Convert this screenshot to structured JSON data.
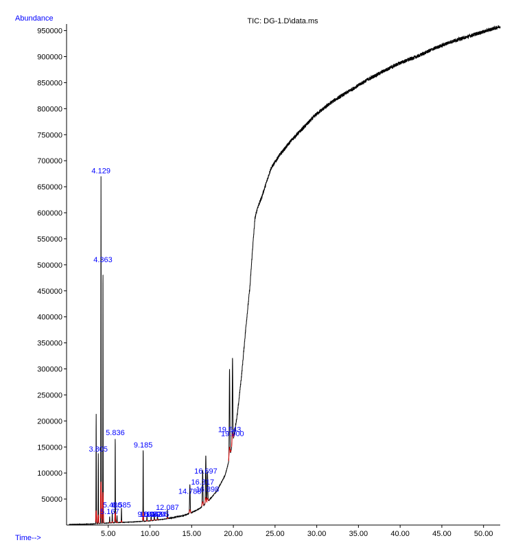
{
  "chart_data": {
    "type": "line",
    "title": "TIC: DG-1.D\\data.ms",
    "ylabel": "Abundance",
    "xlabel": "Time-->",
    "xlim": [
      0,
      52
    ],
    "ylim": [
      0,
      960000
    ],
    "grid": false,
    "x_ticks": [
      "5.00",
      "10.00",
      "15.00",
      "20.00",
      "25.00",
      "30.00",
      "35.00",
      "40.00",
      "45.00",
      "50.00"
    ],
    "x_tick_values": [
      5,
      10,
      15,
      20,
      25,
      30,
      35,
      40,
      45,
      50
    ],
    "y_ticks": [
      "50000",
      "100000",
      "150000",
      "200000",
      "250000",
      "300000",
      "350000",
      "400000",
      "450000",
      "500000",
      "550000",
      "600000",
      "650000",
      "700000",
      "750000",
      "800000",
      "850000",
      "900000",
      "950000"
    ],
    "y_tick_values": [
      50000,
      100000,
      150000,
      200000,
      250000,
      300000,
      350000,
      400000,
      450000,
      500000,
      550000,
      600000,
      650000,
      700000,
      750000,
      800000,
      850000,
      900000,
      950000
    ],
    "series": [
      {
        "color": "#000000",
        "baseline": [
          [
            0,
            1000
          ],
          [
            3.0,
            2000
          ],
          [
            5,
            4000
          ],
          [
            8,
            6000
          ],
          [
            10,
            8000
          ],
          [
            12,
            12000
          ],
          [
            14,
            18000
          ],
          [
            15,
            24000
          ],
          [
            16,
            32000
          ],
          [
            17,
            46000
          ],
          [
            18,
            65000
          ],
          [
            19,
            95000
          ],
          [
            19.5,
            125000
          ],
          [
            20,
            165000
          ],
          [
            20.5,
            215000
          ],
          [
            21,
            290000
          ],
          [
            21.5,
            380000
          ],
          [
            22,
            460000
          ],
          [
            22.3,
            530000
          ],
          [
            22.6,
            590000
          ],
          [
            22.9,
            610000
          ],
          [
            23.3,
            625000
          ],
          [
            23.8,
            650000
          ],
          [
            24.5,
            685000
          ],
          [
            25.5,
            710000
          ],
          [
            27,
            740000
          ],
          [
            28.5,
            765000
          ],
          [
            30,
            790000
          ],
          [
            32,
            815000
          ],
          [
            34,
            835000
          ],
          [
            36,
            855000
          ],
          [
            38,
            872000
          ],
          [
            40,
            888000
          ],
          [
            42,
            900000
          ],
          [
            44,
            915000
          ],
          [
            46,
            928000
          ],
          [
            48,
            938000
          ],
          [
            50,
            948000
          ],
          [
            52,
            958000
          ]
        ],
        "peaks": [
          {
            "rt": 3.55,
            "height": 212000
          },
          {
            "rt": 3.805,
            "height": 135000
          },
          {
            "rt": 4.129,
            "height": 668000
          },
          {
            "rt": 4.363,
            "height": 497000
          },
          {
            "rt": 5.167,
            "height": 12000
          },
          {
            "rt": 5.48,
            "height": 20000
          },
          {
            "rt": 5.836,
            "height": 165000
          },
          {
            "rt": 6.05,
            "height": 14000
          },
          {
            "rt": 6.585,
            "height": 28000
          },
          {
            "rt": 9.185,
            "height": 142000
          },
          {
            "rt": 9.64,
            "height": 12000
          },
          {
            "rt": 10.14,
            "height": 14000
          },
          {
            "rt": 10.52,
            "height": 13000
          },
          {
            "rt": 10.9,
            "height": 12000
          },
          {
            "rt": 12.087,
            "height": 18000
          },
          {
            "rt": 14.788,
            "height": 55000
          },
          {
            "rt": 16.317,
            "height": 70000
          },
          {
            "rt": 16.697,
            "height": 92000
          },
          {
            "rt": 16.898,
            "height": 58000
          },
          {
            "rt": 19.543,
            "height": 172000
          },
          {
            "rt": 19.9,
            "height": 165000
          }
        ]
      }
    ],
    "annotations": [
      {
        "text": "4.129",
        "rt": 4.129,
        "abundance": 672000
      },
      {
        "text": "4.363",
        "rt": 4.363,
        "abundance": 501000
      },
      {
        "text": "3.805",
        "rt": 3.805,
        "abundance": 137000
      },
      {
        "text": "5.836",
        "rt": 5.836,
        "abundance": 169000
      },
      {
        "text": "9.185",
        "rt": 9.185,
        "abundance": 145000
      },
      {
        "text": "5.480",
        "rt": 5.48,
        "abundance": 30000
      },
      {
        "text": "5.167",
        "rt": 5.167,
        "abundance": 17000
      },
      {
        "text": "6.585",
        "rt": 6.585,
        "abundance": 30000
      },
      {
        "text": "9.648",
        "rt": 9.648,
        "abundance": 12000
      },
      {
        "text": "10.143",
        "rt": 10.143,
        "abundance": 12000
      },
      {
        "text": "10.524",
        "rt": 10.524,
        "abundance": 12000
      },
      {
        "text": "10.905",
        "rt": 10.905,
        "abundance": 12000
      },
      {
        "text": "12.087",
        "rt": 12.087,
        "abundance": 25000
      },
      {
        "text": "14.788",
        "rt": 14.788,
        "abundance": 56000
      },
      {
        "text": "16.317",
        "rt": 16.317,
        "abundance": 74000
      },
      {
        "text": "16.697",
        "rt": 16.697,
        "abundance": 95000
      },
      {
        "text": "16.898",
        "rt": 16.898,
        "abundance": 60000
      },
      {
        "text": "19.543",
        "rt": 19.543,
        "abundance": 175000
      },
      {
        "text": "19.900",
        "rt": 19.9,
        "abundance": 167000
      }
    ]
  }
}
